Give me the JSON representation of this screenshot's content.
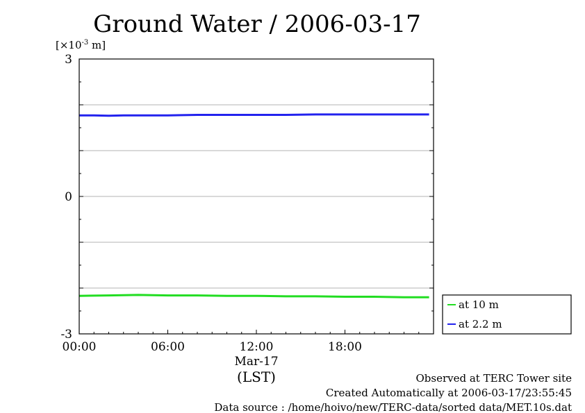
{
  "chart_data": {
    "type": "line",
    "title": "Ground Water / 2006-03-17",
    "y_unit_label": "[×10",
    "y_unit_exp": "-3",
    "y_unit_suffix": " m]",
    "ylim": [
      -3,
      3
    ],
    "yticks": [
      "3",
      "0",
      "-3"
    ],
    "y_gridlines": [
      2,
      1,
      0,
      -1,
      -2
    ],
    "xlim": [
      0,
      24
    ],
    "xticks": [
      {
        "value": 0,
        "label": "00:00"
      },
      {
        "value": 6,
        "label": "06:00"
      },
      {
        "value": 12,
        "label": "12:00"
      },
      {
        "value": 18,
        "label": "18:00"
      }
    ],
    "date_label": "Mar-17",
    "xlabel": "(LST)",
    "grid": true,
    "legend_placement": "bottom-right-outside",
    "series": [
      {
        "name": "at 10 m",
        "color": "#22dd22",
        "x": [
          0,
          2,
          4,
          6,
          8,
          10,
          12,
          14,
          16,
          18,
          20,
          22,
          23.7
        ],
        "y": [
          -2.17,
          -2.16,
          -2.15,
          -2.16,
          -2.16,
          -2.17,
          -2.17,
          -2.18,
          -2.18,
          -2.19,
          -2.19,
          -2.2,
          -2.2
        ]
      },
      {
        "name": "at 2.2 m",
        "color": "#2222ee",
        "x": [
          0,
          1,
          2,
          3,
          4,
          6,
          8,
          10,
          12,
          14,
          16,
          18,
          20,
          22,
          23.7
        ],
        "y": [
          1.77,
          1.77,
          1.76,
          1.77,
          1.77,
          1.77,
          1.78,
          1.78,
          1.78,
          1.78,
          1.79,
          1.79,
          1.79,
          1.79,
          1.79
        ]
      }
    ]
  },
  "footer": {
    "line1": "Observed at TERC Tower site",
    "line2": "Created Automatically at 2006-03-17/23:55:45",
    "line3": "Data source : /home/hoivo/new/TERC-data/sorted  data/MET.10s.dat"
  }
}
